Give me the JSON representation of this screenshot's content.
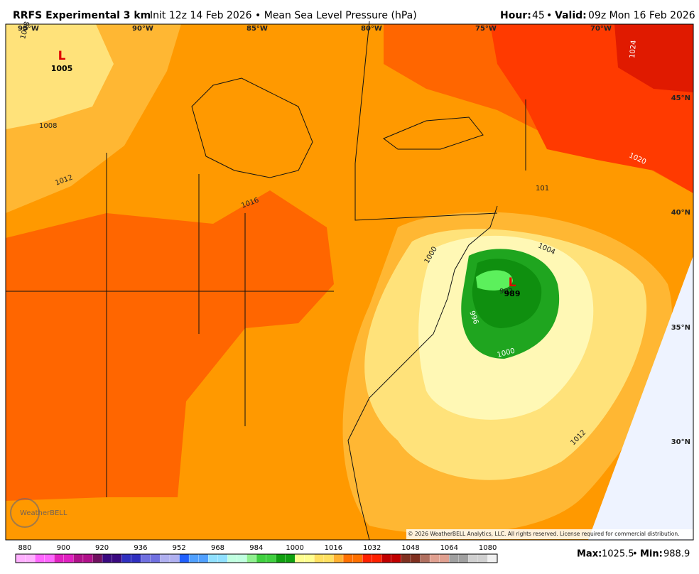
{
  "header": {
    "title": "RRFS Experimental 3 km",
    "subtitle": "Init 12z 14 Feb 2026 • Mean Sea Level Pressure (hPa)",
    "hour_label": "Hour:",
    "hour": 45,
    "separator": "•",
    "valid_label": "Valid:",
    "valid": "09z Mon 16 Feb 2026"
  },
  "map": {
    "longitudes": [
      "95°W",
      "90°W",
      "85°W",
      "80°W",
      "75°W",
      "70°W"
    ],
    "latitudes": [
      "45°N",
      "40°N",
      "35°N",
      "30°N"
    ],
    "contours": [
      "1008",
      "1008",
      "1012",
      "1016",
      "1020",
      "1024",
      "1004",
      "1000",
      "996",
      "992",
      "1012",
      "1000",
      "101"
    ],
    "lows": [
      {
        "symbol": "L",
        "value": "1005"
      },
      {
        "symbol": "L",
        "value": "989"
      }
    ],
    "logo": "WeatherBELL",
    "copyright": "© 2026 WeatherBELL Analytics, LLC. All rights reserved. License required for commercial distribution."
  },
  "colorbar": {
    "ticks": [
      880,
      900,
      920,
      936,
      952,
      968,
      984,
      1000,
      1016,
      1032,
      1048,
      1064,
      1080
    ]
  },
  "footer": {
    "max_label": "Max:",
    "max": 1025.5,
    "min_label": "Min:",
    "min": 988.9
  }
}
